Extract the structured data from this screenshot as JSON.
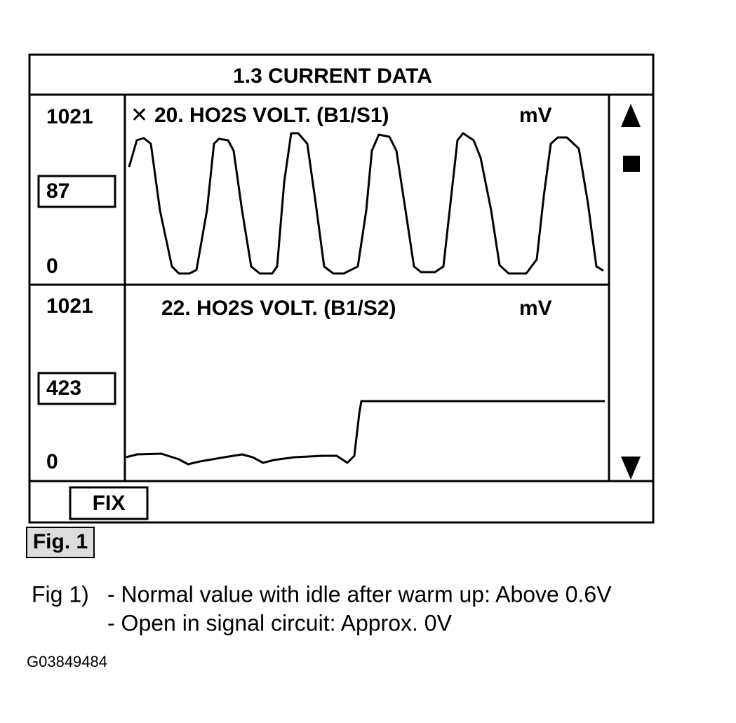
{
  "screen": {
    "title": "1.3  CURRENT DATA",
    "panels": [
      {
        "max": "1021",
        "current": "87",
        "min": "0",
        "marker": "✕",
        "label": "20. HO2S  VOLT. (B1/S1)",
        "unit": "mV"
      },
      {
        "max": "1021",
        "current": "423",
        "min": "0",
        "label": "22. HO2S  VOLT. (B1/S2)",
        "unit": "mV"
      }
    ],
    "button": "FIX"
  },
  "figure_label": "Fig. 1",
  "caption": {
    "prefix": "Fig 1)",
    "lines": [
      "- Normal value with idle after warm up: Above 0.6V",
      "- Open in signal circuit: Approx. 0V"
    ]
  },
  "figure_id": "G03849484"
}
